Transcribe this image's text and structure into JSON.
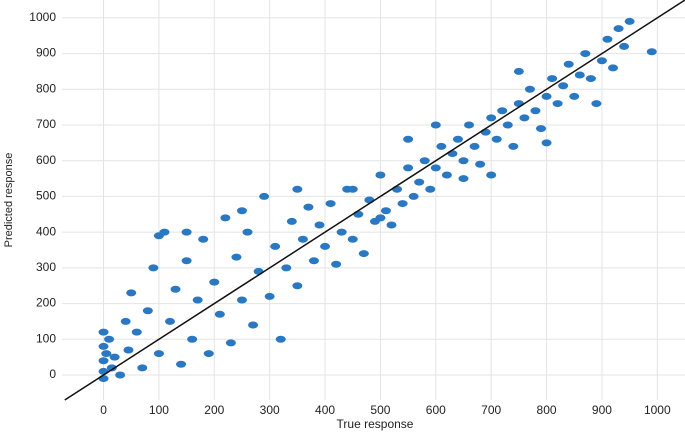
{
  "chart_data": {
    "type": "scatter",
    "xlabel": "True response",
    "ylabel": "Predicted response",
    "xlim": [
      -75,
      1050
    ],
    "ylim": [
      -70,
      1050
    ],
    "xticks": [
      0,
      100,
      200,
      300,
      400,
      500,
      600,
      700,
      800,
      900,
      1000
    ],
    "yticks": [
      0,
      100,
      200,
      300,
      400,
      500,
      600,
      700,
      800,
      900,
      1000
    ],
    "grid": true,
    "identity_line": true,
    "series": [
      {
        "color": "#2a78c2",
        "x": [
          0,
          0,
          0,
          0,
          0,
          5,
          10,
          15,
          20,
          30,
          40,
          45,
          50,
          60,
          70,
          80,
          90,
          100,
          110,
          120,
          130,
          140,
          150,
          160,
          170,
          180,
          190,
          200,
          210,
          220,
          230,
          240,
          250,
          260,
          270,
          280,
          290,
          300,
          310,
          320,
          330,
          340,
          350,
          360,
          370,
          380,
          390,
          400,
          410,
          420,
          430,
          440,
          450,
          460,
          470,
          480,
          490,
          500,
          510,
          520,
          530,
          540,
          550,
          560,
          570,
          580,
          590,
          600,
          610,
          620,
          630,
          640,
          650,
          660,
          670,
          680,
          690,
          700,
          710,
          720,
          730,
          740,
          750,
          760,
          770,
          780,
          790,
          800,
          810,
          820,
          830,
          840,
          850,
          860,
          870,
          880,
          890,
          900,
          910,
          920,
          930,
          940,
          950,
          990,
          750,
          600,
          500,
          350,
          250,
          150,
          100,
          700,
          800,
          650,
          450,
          550
        ],
        "y": [
          120,
          80,
          40,
          10,
          -10,
          60,
          100,
          20,
          50,
          0,
          150,
          70,
          230,
          120,
          20,
          180,
          300,
          60,
          400,
          150,
          240,
          30,
          320,
          100,
          210,
          380,
          60,
          260,
          170,
          440,
          90,
          330,
          210,
          400,
          140,
          290,
          500,
          220,
          360,
          100,
          300,
          430,
          250,
          380,
          470,
          320,
          420,
          360,
          480,
          310,
          400,
          520,
          380,
          450,
          340,
          490,
          430,
          560,
          460,
          420,
          520,
          480,
          580,
          500,
          540,
          600,
          520,
          580,
          640,
          560,
          620,
          660,
          600,
          700,
          640,
          590,
          680,
          720,
          660,
          740,
          700,
          640,
          760,
          720,
          800,
          740,
          690,
          780,
          830,
          760,
          810,
          870,
          780,
          840,
          900,
          830,
          760,
          880,
          940,
          860,
          970,
          920,
          990,
          905,
          850,
          700,
          440,
          520,
          460,
          400,
          390,
          560,
          650,
          550,
          520,
          660
        ]
      }
    ]
  }
}
